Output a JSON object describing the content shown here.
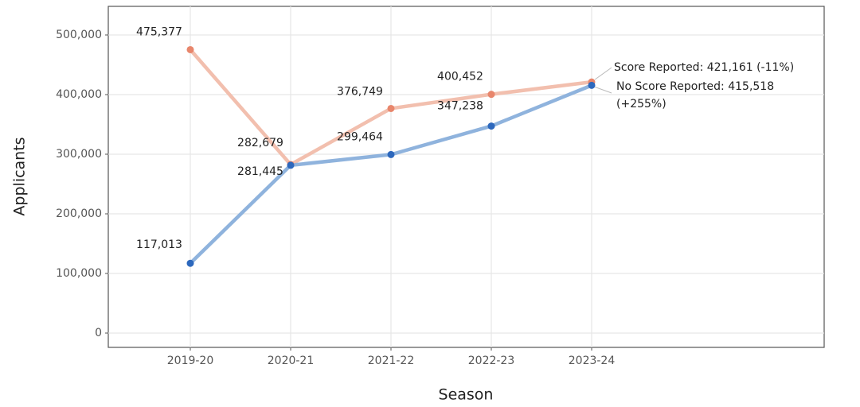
{
  "chart_data": {
    "type": "line",
    "x_label": "Season",
    "y_label": "Applicants",
    "categories": [
      "2019-20",
      "2020-21",
      "2021-22",
      "2022-23",
      "2023-24"
    ],
    "series": [
      {
        "color": "#f2bfae",
        "point_color": "#e8866c",
        "values": [
          475377,
          282679,
          376749,
          400452,
          421161
        ],
        "value_labels": [
          "475,377",
          "282,679",
          "376,749",
          "400,452",
          null
        ]
      },
      {
        "color": "#8fb3dd",
        "point_color": "#2d68bd",
        "values": [
          117013,
          281445,
          299464,
          347238,
          415518
        ],
        "value_labels": [
          "117,013",
          "281,445",
          "299,464",
          "347,238",
          null
        ]
      }
    ],
    "annotations": [
      "Score Reported: 421,161 (-11%)",
      "No Score Reported: 415,518",
      "(+255%)"
    ],
    "ylim": [
      -24000,
      548000
    ],
    "yticks": [
      0,
      {
        "value": 100000,
        "label": "100,000"
      },
      {
        "value": 200000,
        "label": "200,000"
      },
      {
        "value": 300000,
        "label": "300,000"
      },
      {
        "value": 400000,
        "label": "400,000"
      },
      {
        "value": 500000,
        "label": "500,000"
      }
    ],
    "grid": true
  }
}
